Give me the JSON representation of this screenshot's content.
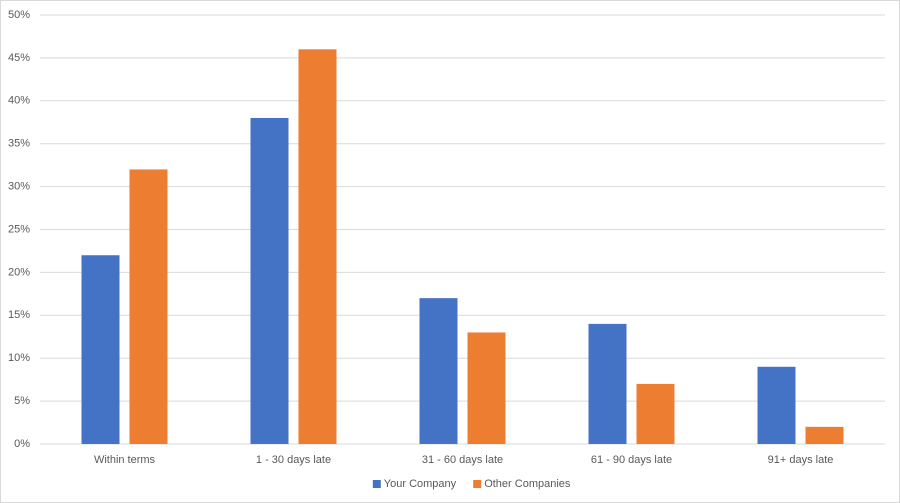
{
  "chart_data": {
    "type": "bar",
    "categories": [
      "Within terms",
      "1 - 30 days late",
      "31 - 60 days late",
      "61 - 90 days late",
      "91+ days late"
    ],
    "series": [
      {
        "name": "Your Company",
        "color": "#4472c4",
        "values": [
          22,
          38,
          17,
          14,
          9
        ]
      },
      {
        "name": "Other Companies",
        "color": "#ed7d31",
        "values": [
          32,
          46,
          13,
          7,
          2
        ]
      }
    ],
    "ylim": [
      0,
      50
    ],
    "yticks": [
      {
        "value": 0,
        "label": "0%"
      },
      {
        "value": 5,
        "label": "5%"
      },
      {
        "value": 10,
        "label": "10%"
      },
      {
        "value": 15,
        "label": "15%"
      },
      {
        "value": 20,
        "label": "20%"
      },
      {
        "value": 25,
        "label": "25%"
      },
      {
        "value": 30,
        "label": "30%"
      },
      {
        "value": 35,
        "label": "35%"
      },
      {
        "value": 40,
        "label": "40%"
      },
      {
        "value": 45,
        "label": "45%"
      },
      {
        "value": 50,
        "label": "50%"
      }
    ],
    "grid": true,
    "legend": "bottom"
  }
}
